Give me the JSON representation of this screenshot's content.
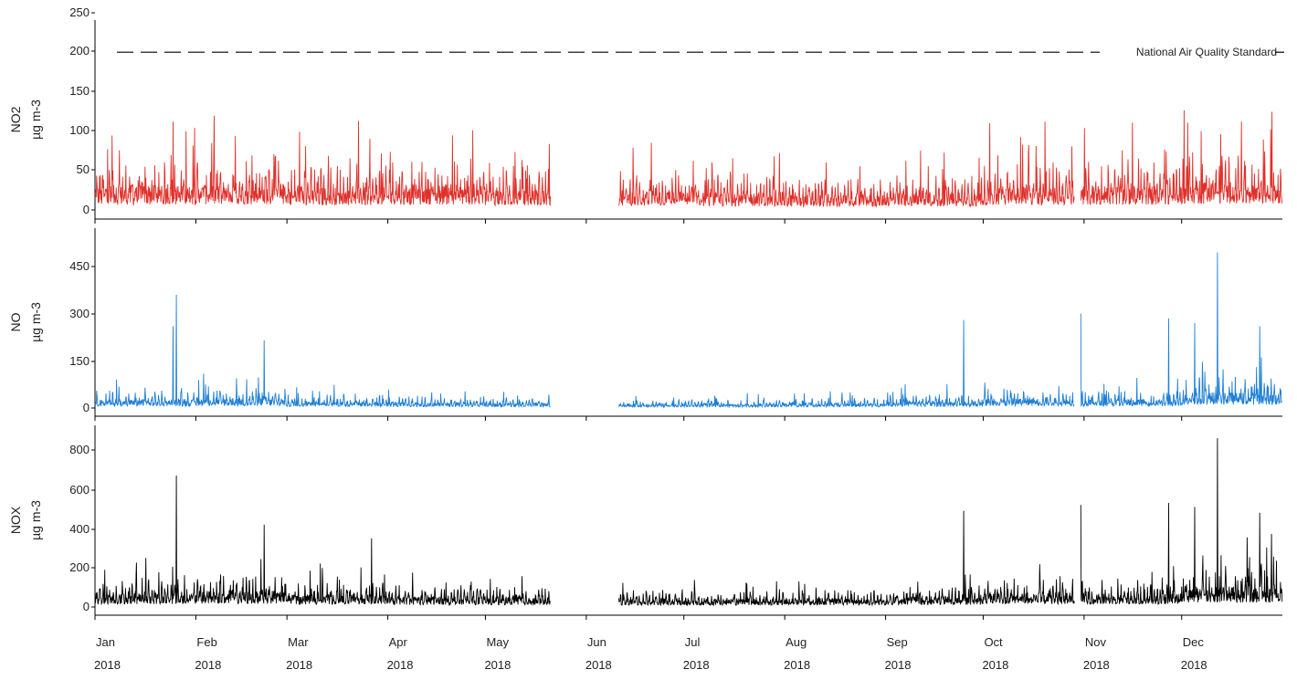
{
  "chart_data": {
    "type": "line",
    "x_axis": {
      "months": [
        "Jan",
        "Feb",
        "Mar",
        "Apr",
        "May",
        "Jun",
        "Jul",
        "Aug",
        "Sep",
        "Oct",
        "Nov",
        "Dec"
      ],
      "year_labels": [
        "2018",
        "2018",
        "2018",
        "2018",
        "2018",
        "2018",
        "2018",
        "2018",
        "2018",
        "2018",
        "2018",
        "2018"
      ],
      "range": [
        "2018-01-01",
        "2018-12-31"
      ],
      "data_gap": [
        "2018-05-21",
        "2018-06-11"
      ],
      "gap_after_oct": [
        "2018-10-29",
        "2018-10-31"
      ]
    },
    "panels": [
      {
        "series": "NO2",
        "ylabel_line1": "NO2",
        "ylabel_line2": "µg m-3",
        "color": "#e0302a",
        "ylim": [
          0,
          250
        ],
        "yticks": [
          "0",
          "50",
          "100",
          "150",
          "200",
          "250"
        ],
        "reference_line": {
          "value": 200,
          "label": "National Air Quality Standard"
        },
        "monthly_typical": [
          35,
          38,
          32,
          36,
          30,
          28,
          25,
          22,
          24,
          33,
          35,
          42
        ],
        "notable_peaks": [
          {
            "date": "2018-01-25",
            "value": 112
          },
          {
            "date": "2018-03-23",
            "value": 113
          },
          {
            "date": "2018-10-03",
            "value": 110
          },
          {
            "date": "2018-10-20",
            "value": 112
          },
          {
            "date": "2018-12-07",
            "value": 100
          },
          {
            "date": "2018-12-13",
            "value": 96
          }
        ]
      },
      {
        "series": "NO",
        "ylabel_line1": "NO",
        "ylabel_line2": "µg m-3",
        "color": "#1f7fd6",
        "ylim": [
          0,
          500
        ],
        "yticks": [
          "0",
          "150",
          "300",
          "450"
        ],
        "monthly_typical": [
          30,
          35,
          25,
          20,
          18,
          15,
          15,
          18,
          25,
          35,
          30,
          55
        ],
        "notable_peaks": [
          {
            "date": "2018-01-26",
            "value": 360
          },
          {
            "date": "2018-01-25",
            "value": 260
          },
          {
            "date": "2018-02-22",
            "value": 215
          },
          {
            "date": "2018-09-25",
            "value": 280
          },
          {
            "date": "2018-10-31",
            "value": 300
          },
          {
            "date": "2018-11-27",
            "value": 285
          },
          {
            "date": "2018-12-05",
            "value": 270
          },
          {
            "date": "2018-12-12",
            "value": 495
          },
          {
            "date": "2018-12-25",
            "value": 260
          }
        ]
      },
      {
        "series": "NOX",
        "ylabel_line1": "NOX",
        "ylabel_line2": "µg m-3",
        "color": "#000000",
        "ylim": [
          0,
          900
        ],
        "yticks": [
          "0",
          "200",
          "400",
          "600",
          "800"
        ],
        "monthly_typical": [
          80,
          90,
          70,
          60,
          55,
          50,
          45,
          50,
          60,
          80,
          75,
          120
        ],
        "notable_peaks": [
          {
            "date": "2018-01-26",
            "value": 670
          },
          {
            "date": "2018-02-22",
            "value": 420
          },
          {
            "date": "2018-03-27",
            "value": 350
          },
          {
            "date": "2018-09-25",
            "value": 490
          },
          {
            "date": "2018-10-31",
            "value": 520
          },
          {
            "date": "2018-11-27",
            "value": 530
          },
          {
            "date": "2018-12-05",
            "value": 510
          },
          {
            "date": "2018-12-12",
            "value": 860
          },
          {
            "date": "2018-12-25",
            "value": 480
          }
        ]
      }
    ]
  }
}
